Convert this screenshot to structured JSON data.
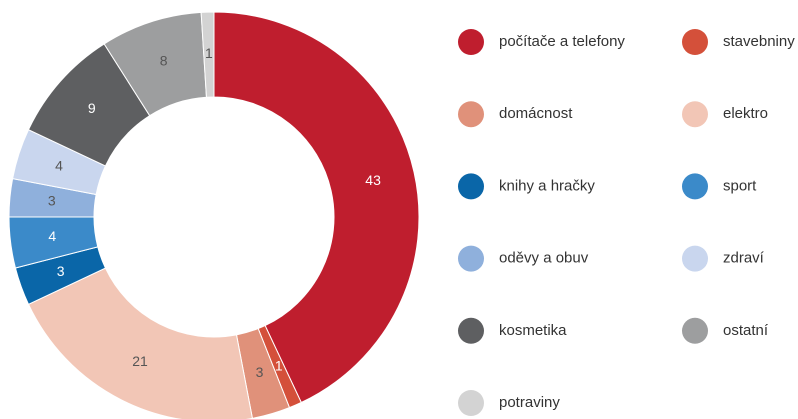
{
  "chart_data": {
    "type": "donut",
    "categories": [
      "počítače a telefony",
      "stavebniny",
      "domácnost",
      "elektro",
      "knihy a hračky",
      "sport",
      "oděvy a obuv",
      "zdraví",
      "kosmetika",
      "ostatní",
      "potraviny"
    ],
    "values": [
      43,
      1,
      3,
      21,
      3,
      4,
      3,
      4,
      9,
      8,
      1
    ],
    "colors": [
      "#bf1e2e",
      "#d4503a",
      "#e0917a",
      "#f2c6b6",
      "#0a66a8",
      "#3b8ac9",
      "#8fb0dc",
      "#c9d6ee",
      "#5e5f61",
      "#9d9e9f",
      "#d3d3d3"
    ],
    "legend": "right"
  }
}
